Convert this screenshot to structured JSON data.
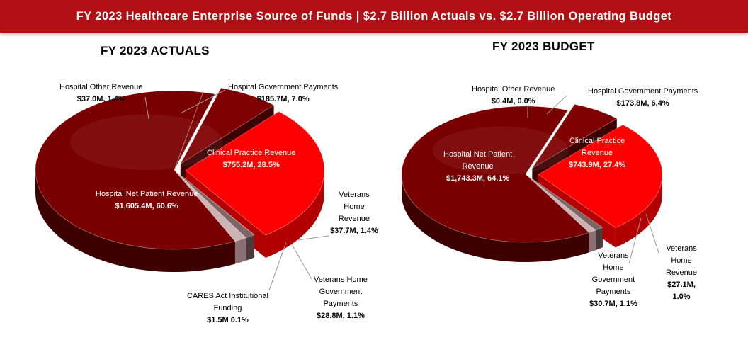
{
  "banner_title": "FY 2023 Healthcare Enterprise Source of Funds | $2.7 Billion  Actuals vs. $2.7 Billion  Operating Budget",
  "colors": {
    "banner": "#b00f14",
    "hospital_net": "#7a0000",
    "hospital_net_side": "#3d0000",
    "hospital_gov": "#7f0000",
    "clinical": "#ff0000",
    "clinical_side": "#b30000",
    "light": "#cdb4b4",
    "grey": "#7b6666"
  },
  "chart_data": [
    {
      "type": "pie",
      "title": "FY 2023 ACTUALS",
      "slices": [
        {
          "name": "Hospital Government Payments",
          "value": 185.7,
          "value_label": "$185.7M, 7.0%",
          "percent": 7.0
        },
        {
          "name": "Clinical Practice Revenue",
          "value": 755.2,
          "value_label": "$755.2M, 28.5%",
          "percent": 28.5
        },
        {
          "name": "CARES Act Institutional Funding",
          "value": 1.5,
          "value_label": "$1.5M 0.1%",
          "percent": 0.1
        },
        {
          "name": "Veterans Home Government Payments",
          "value": 28.8,
          "value_label": "$28.8M, 1.1%",
          "percent": 1.1
        },
        {
          "name": "Veterans Home Revenue",
          "value": 37.7,
          "value_label": "$37.7M, 1.4%",
          "percent": 1.4
        },
        {
          "name": "Hospital Net Patient Revenue",
          "value": 1605.4,
          "value_label": "$1,605.4M, 60.6%",
          "percent": 60.6
        },
        {
          "name": "Hospital Other Revenue",
          "value": 37.0,
          "value_label": "$37.0M, 1.4%",
          "percent": 1.4
        }
      ]
    },
    {
      "type": "pie",
      "title": "FY 2023 BUDGET",
      "slices": [
        {
          "name": "Hospital Government Payments",
          "value": 173.8,
          "value_label": "$173.8M, 6.4%",
          "percent": 6.4
        },
        {
          "name": "Clinical Practice Revenue",
          "value": 743.9,
          "value_label": "$743.9M, 27.4%",
          "percent": 27.4
        },
        {
          "name": "Veterans Home Government Payments",
          "value": 30.7,
          "value_label": "$30.7M, 1.1%",
          "percent": 1.1
        },
        {
          "name": "Veterans Home Revenue",
          "value": 27.1,
          "value_label": "$27.1M, 1.0%",
          "percent": 1.0
        },
        {
          "name": "Hospital Net Patient Revenue",
          "value": 1743.3,
          "value_label": "$1,743.3M, 64.1%",
          "percent": 64.1
        },
        {
          "name": "Hospital Other Revenue",
          "value": 0.4,
          "value_label": "$0.4M, 0.0%",
          "percent": 0.0
        }
      ]
    }
  ],
  "labels": {
    "actuals": {
      "hosp_other": [
        "Hospital Other Revenue"
      ],
      "hosp_gov": [
        "Hospital Government Payments"
      ],
      "clinical": [
        "Clinical Practice Revenue"
      ],
      "hosp_net": [
        "Hospital Net Patient Revenue"
      ],
      "vet_rev": [
        "Veterans",
        "Home",
        "Revenue"
      ],
      "cares": [
        "CARES Act Institutional",
        "Funding"
      ],
      "vet_gov": [
        "Veterans Home",
        "Government",
        "Payments"
      ]
    },
    "budget": {
      "hosp_other": [
        "Hospital Other Revenue"
      ],
      "hosp_gov": [
        "Hospital Government Payments"
      ],
      "clinical": [
        "Clinical Practice",
        "Revenue"
      ],
      "hosp_net": [
        "Hospital Net Patient",
        "Revenue"
      ],
      "vet_rev": [
        "Veterans",
        "Home",
        "Revenue"
      ],
      "vet_gov": [
        "Veterans",
        "Home",
        "Government",
        "Payments"
      ]
    }
  },
  "label_values": {
    "actuals": {
      "hosp_other": "$37.0M, 1.4%",
      "hosp_gov": "$185.7M, 7.0%",
      "clinical": "$755.2M, 28.5%",
      "hosp_net": "$1,605.4M, 60.6%",
      "vet_rev": "$37.7M, 1.4%",
      "cares": "$1.5M 0.1%",
      "vet_gov": "$28.8M, 1.1%"
    },
    "budget": {
      "hosp_other": "$0.4M, 0.0%",
      "hosp_gov": "$173.8M, 6.4%",
      "clinical": "$743.9M, 27.4%",
      "hosp_net": "$1,743.3M, 64.1%",
      "vet_rev_a": "$27.1M,",
      "vet_rev_b": "1.0%",
      "vet_gov": "$30.7M, 1.1%"
    }
  }
}
